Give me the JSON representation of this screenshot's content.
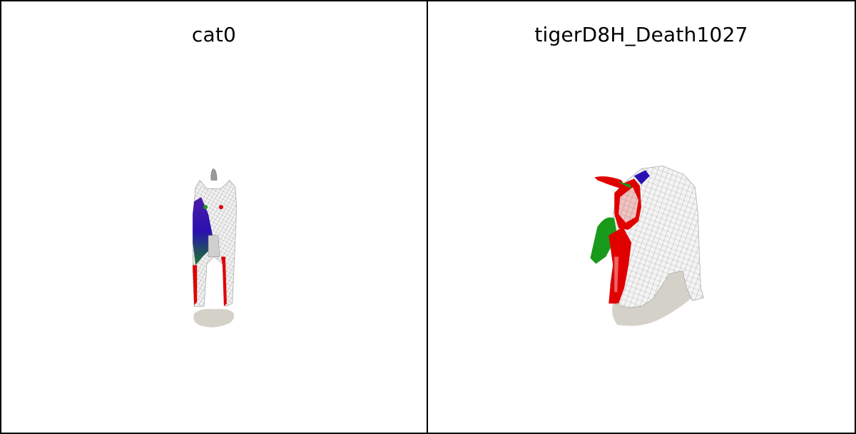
{
  "panels": [
    {
      "title": "cat0",
      "model": "cat-mesh"
    },
    {
      "title": "tigerD8H_Death1027",
      "model": "tiger-mesh"
    }
  ],
  "colors": {
    "background": "#ffffff",
    "border": "#000000",
    "shadow": "#d4d2c8",
    "mesh": "#e6e6e6",
    "mesh_wire": "#8a8a8a",
    "highlight_red": "#e00000",
    "highlight_green": "#1a9a1a",
    "highlight_blue": "#2a10b0"
  }
}
